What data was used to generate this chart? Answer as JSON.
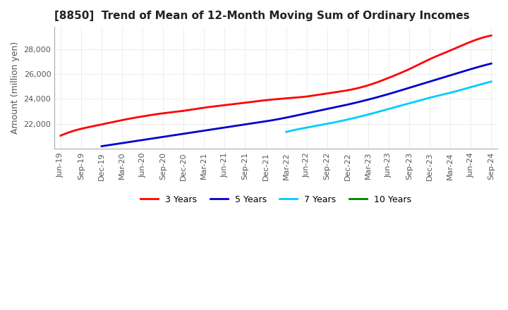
{
  "title": "[8850]  Trend of Mean of 12-Month Moving Sum of Ordinary Incomes",
  "ylabel": "Amount (million yen)",
  "ylim": [
    20000,
    29800
  ],
  "yticks": [
    22000,
    24000,
    26000,
    28000
  ],
  "line_colors": {
    "3y": "#ff0000",
    "5y": "#0000cc",
    "7y": "#00ccff",
    "10y": "#008000"
  },
  "legend_labels": [
    "3 Years",
    "5 Years",
    "7 Years",
    "10 Years"
  ],
  "x_labels": [
    "Jun-19",
    "Sep-19",
    "Dec-19",
    "Mar-20",
    "Jun-20",
    "Sep-20",
    "Dec-20",
    "Mar-21",
    "Jun-21",
    "Sep-21",
    "Dec-21",
    "Mar-22",
    "Jun-22",
    "Sep-22",
    "Dec-22",
    "Mar-23",
    "Jun-23",
    "Sep-23",
    "Dec-23",
    "Mar-24",
    "Jun-24",
    "Sep-24"
  ],
  "background_color": "#ffffff",
  "grid_color": "#c8c8c8",
  "title_fontsize": 11,
  "axis_fontsize": 9,
  "tick_fontsize": 8,
  "line_width": 2.0,
  "y3_x": [
    0,
    1,
    2,
    3,
    4,
    5,
    6,
    7,
    8,
    9,
    10,
    11,
    12,
    13,
    14,
    15,
    16,
    17,
    18,
    19,
    20,
    21
  ],
  "y3_vals": [
    21050,
    21600,
    21950,
    22300,
    22600,
    22850,
    23050,
    23300,
    23500,
    23700,
    23900,
    24050,
    24200,
    24450,
    24700,
    25100,
    25700,
    26400,
    27200,
    27900,
    28600,
    29100
  ],
  "y5_x": [
    2,
    3,
    4,
    5,
    6,
    7,
    8,
    9,
    10,
    11,
    12,
    13,
    14,
    15,
    16,
    17,
    18,
    19,
    20,
    21
  ],
  "y5_vals": [
    20200,
    20450,
    20700,
    20950,
    21200,
    21450,
    21700,
    21950,
    22200,
    22500,
    22850,
    23200,
    23550,
    23950,
    24400,
    24900,
    25400,
    25900,
    26400,
    26850
  ],
  "y7_x": [
    11,
    12,
    13,
    14,
    15,
    16,
    17,
    18,
    19,
    20,
    21
  ],
  "y7_vals": [
    21350,
    21700,
    22000,
    22350,
    22750,
    23200,
    23650,
    24100,
    24500,
    24950,
    25400
  ],
  "y10_x": [],
  "y10_vals": []
}
